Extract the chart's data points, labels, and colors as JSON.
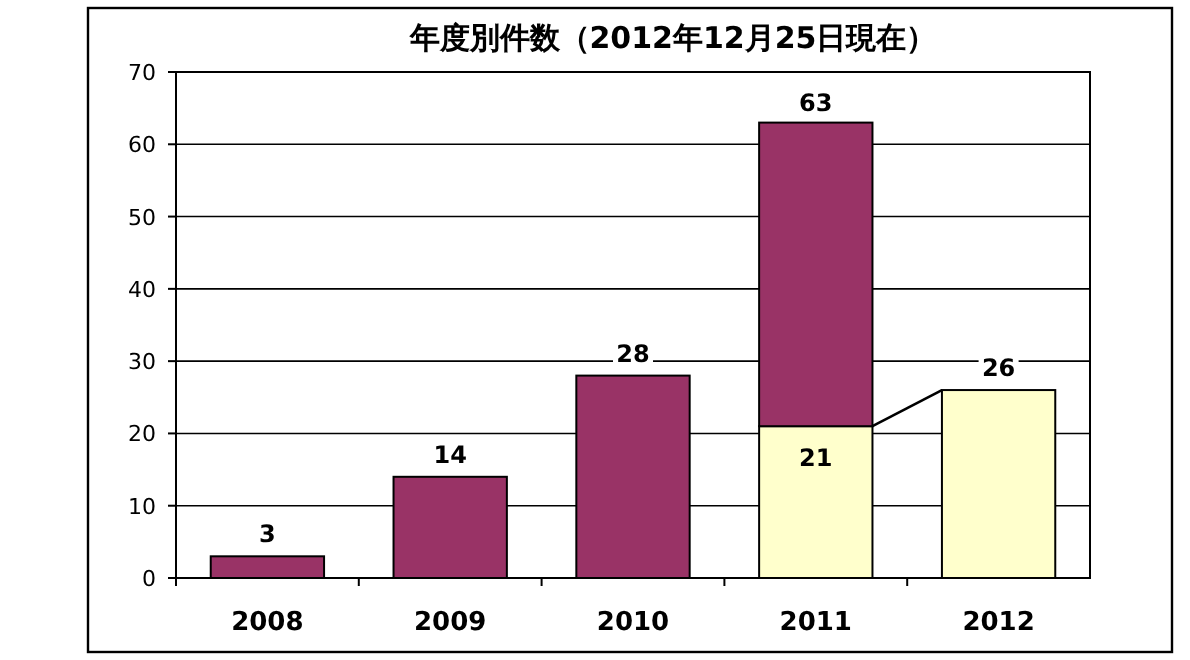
{
  "chart_data": {
    "type": "bar",
    "title": "年度別件数（2012年12月25日現在）",
    "categories": [
      "2008",
      "2009",
      "2010",
      "2011",
      "2012"
    ],
    "stacked": true,
    "series": [
      {
        "color": "#ffffcc",
        "values": [
          null,
          null,
          null,
          21,
          26
        ],
        "value_labels": [
          null,
          null,
          null,
          "21",
          "26"
        ]
      },
      {
        "color": "#993366",
        "values": [
          3,
          14,
          28,
          42,
          null
        ],
        "value_labels": [
          "3",
          "14",
          "28",
          null,
          null
        ]
      }
    ],
    "totals": [
      null,
      null,
      null,
      "63",
      null
    ],
    "ylim": [
      0,
      70
    ],
    "yticks": [
      0,
      10,
      20,
      30,
      40,
      50,
      60,
      70
    ],
    "grid": "y"
  }
}
